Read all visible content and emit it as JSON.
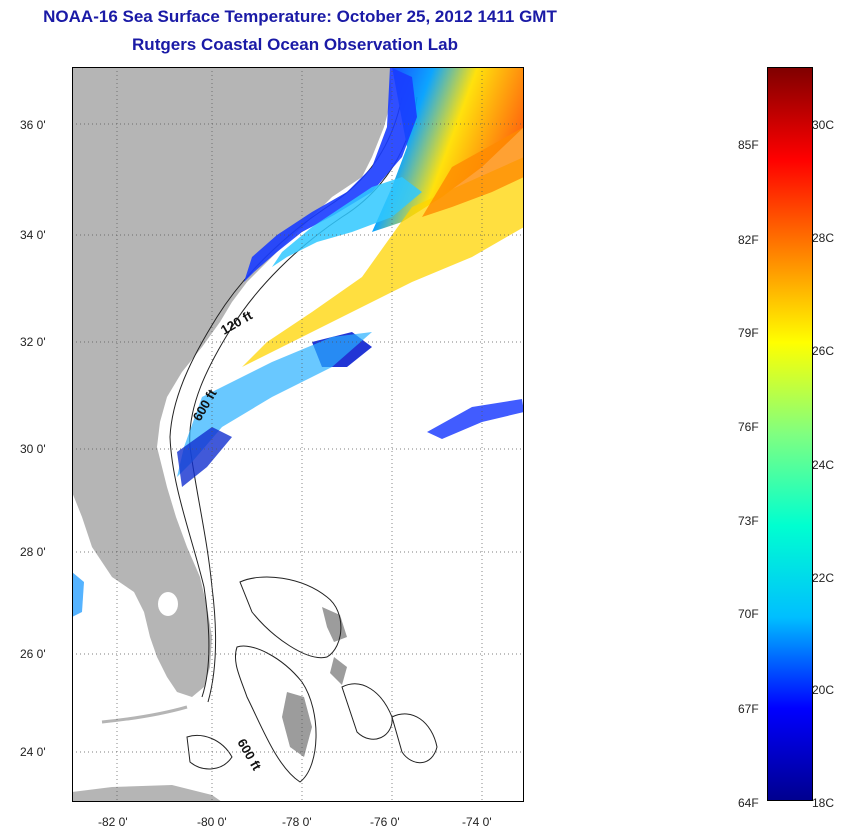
{
  "title": {
    "line1": "NOAA-16 Sea Surface Temperature:  October 25, 2012 1411 GMT",
    "line2": "Rutgers Coastal Ocean Observation Lab"
  },
  "map": {
    "lat_labels": [
      "36 0'",
      "34 0'",
      "32 0'",
      "30 0'",
      "28 0'",
      "26 0'",
      "24 0'"
    ],
    "lon_labels": [
      "-82 0'",
      "-80 0'",
      "-78 0'",
      "-76 0'",
      "-74 0'"
    ],
    "contour_labels": [
      "120 ft",
      "600 ft",
      "600 ft"
    ],
    "colors": {
      "land": "#b5b5b5",
      "ocean_nodata": "#ffffff"
    }
  },
  "colorbar": {
    "fahrenheit_labels": [
      "85F",
      "82F",
      "79F",
      "76F",
      "73F",
      "70F",
      "67F",
      "64F"
    ],
    "celsius_labels": [
      "30C",
      "28C",
      "26C",
      "24C",
      "22C",
      "20C",
      "18C"
    ],
    "colors": [
      "#00008f",
      "#0000ff",
      "#00bfff",
      "#00ffd0",
      "#80ff80",
      "#ffff00",
      "#ff8000",
      "#ff0000",
      "#800000"
    ]
  }
}
